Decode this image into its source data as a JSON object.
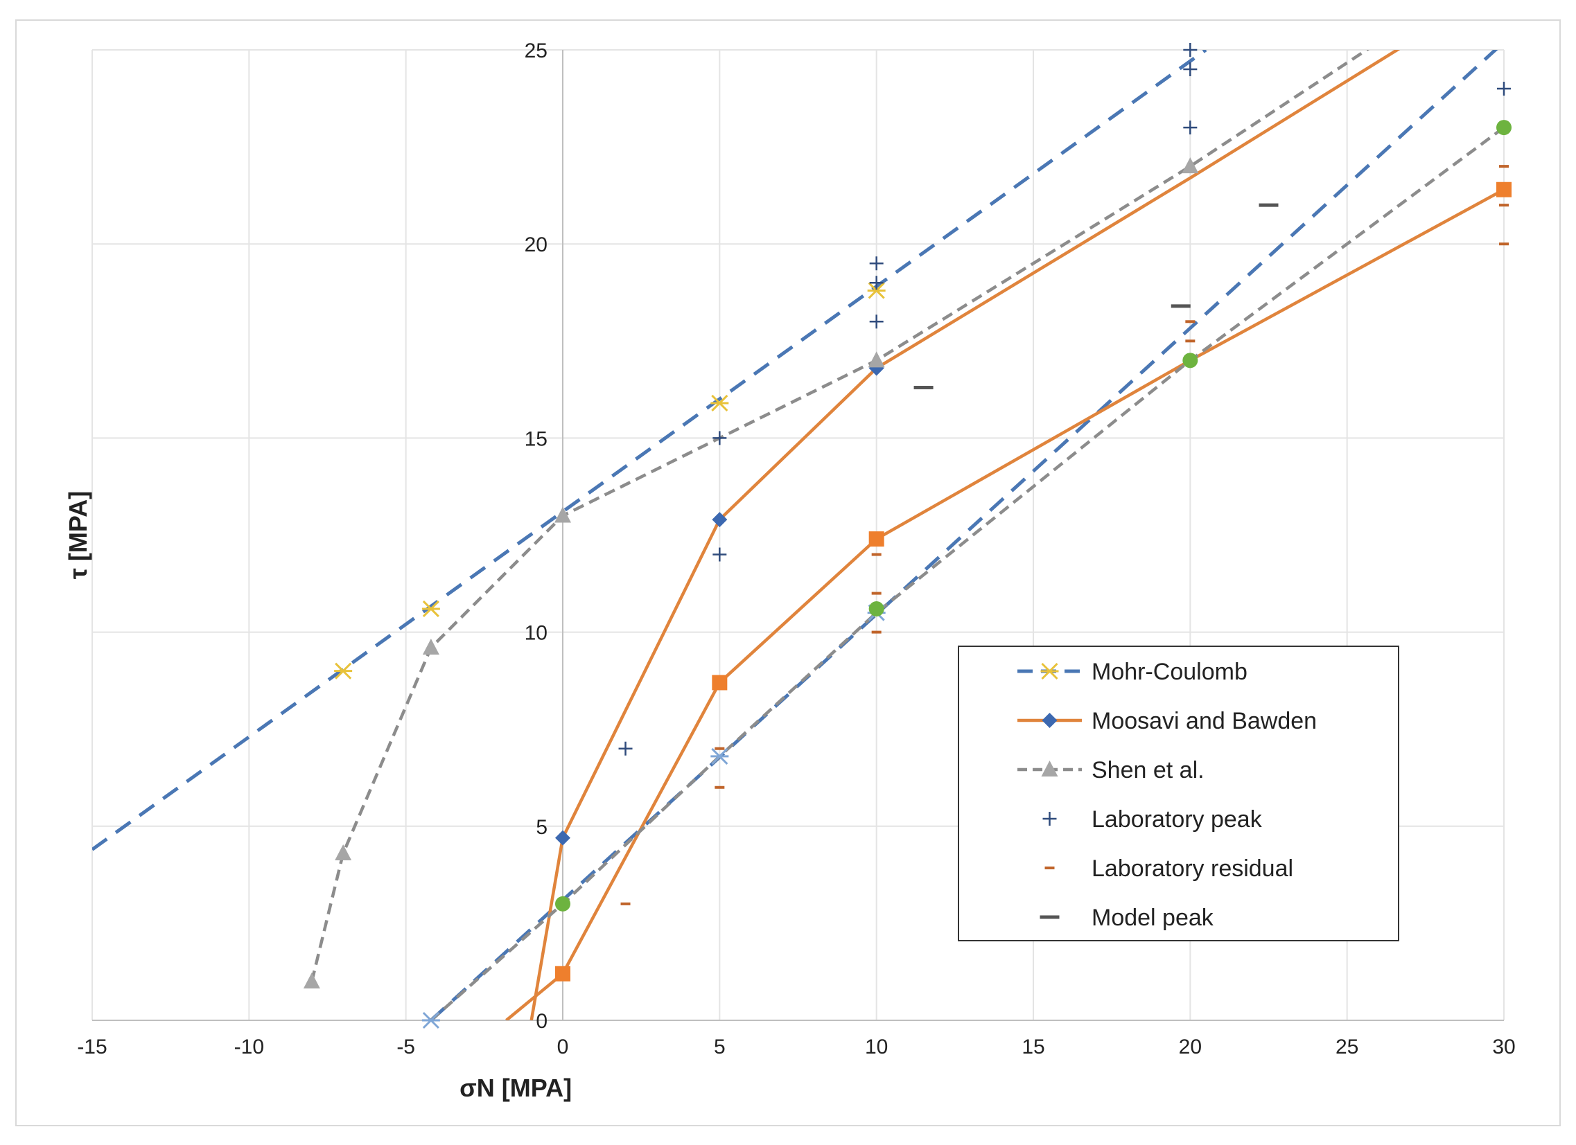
{
  "chart_data": {
    "type": "scatter",
    "title": "",
    "xlabel": "σN  [MPA]",
    "ylabel": "τ [MPA]",
    "xlim": [
      -15,
      30
    ],
    "ylim": [
      0,
      25
    ],
    "xticks": [
      -15,
      -10,
      -5,
      0,
      5,
      10,
      15,
      20,
      25,
      30
    ],
    "yticks": [
      0,
      5,
      10,
      15,
      20,
      25
    ],
    "grid": true,
    "legend_position": "bottom-right",
    "colors": {
      "mohr_line": "#4a77b4",
      "mohr_marker": "#e8c23a",
      "moosavi_line": "#e0843c",
      "moosavi_marker_blue": "#3c68b0",
      "moosavi_marker_orange": "#ee7f2d",
      "moosavi_marker_green": "#6db33f",
      "shen_line": "#8c8c8c",
      "shen_marker": "#a6a6a6",
      "lab_peak": "#2f4b7c",
      "lab_residual": "#c0642a",
      "model_peak": "#555555",
      "grid": "#e4e4e4"
    },
    "series": [
      {
        "name": "Mohr-Coulomb",
        "kind": "mohr",
        "lines": [
          {
            "points": [
              [
                -15,
                4.4
              ],
              [
                20.5,
                25
              ]
            ]
          },
          {
            "points": [
              [
                -4.2,
                0
              ],
              [
                30,
                25.2
              ]
            ]
          }
        ],
        "markers": [
          [
            -7,
            9
          ],
          [
            -4.2,
            10.6
          ],
          [
            5,
            15.9
          ],
          [
            10,
            18.8
          ]
        ],
        "markers2": [
          [
            -4.2,
            0
          ],
          [
            5,
            6.8
          ],
          [
            10,
            10.5
          ]
        ]
      },
      {
        "name": "Moosavi and Bawden",
        "kind": "moosavi",
        "lines": [
          {
            "points": [
              [
                -1,
                0
              ],
              [
                0,
                4.7
              ],
              [
                5,
                12.9
              ],
              [
                10,
                16.8
              ],
              [
                20,
                21.7
              ],
              [
                27,
                25.2
              ]
            ]
          },
          {
            "points": [
              [
                -1.8,
                0
              ],
              [
                0,
                1.2
              ],
              [
                5,
                8.7
              ],
              [
                10,
                12.4
              ],
              [
                20,
                17
              ],
              [
                30,
                21.4
              ]
            ]
          }
        ],
        "markers_blue": [
          [
            0,
            4.7
          ],
          [
            5,
            12.9
          ],
          [
            10,
            16.8
          ]
        ],
        "markers_orange": [
          [
            0,
            1.2
          ],
          [
            5,
            8.7
          ],
          [
            10,
            12.4
          ],
          [
            30,
            21.4
          ]
        ],
        "markers_green": [
          [
            0,
            3
          ],
          [
            10,
            10.6
          ],
          [
            20,
            17
          ],
          [
            30,
            23
          ]
        ]
      },
      {
        "name": "Shen et al.",
        "kind": "shen",
        "lines": [
          {
            "points": [
              [
                -8,
                1
              ],
              [
                -7,
                4.3
              ],
              [
                -4.2,
                9.6
              ],
              [
                0,
                13
              ],
              [
                10,
                17
              ],
              [
                20,
                22
              ],
              [
                26,
                25.2
              ]
            ]
          },
          {
            "points": [
              [
                -4.2,
                0
              ],
              [
                0,
                3
              ],
              [
                5,
                6.8
              ],
              [
                10,
                10.5
              ],
              [
                20,
                17
              ],
              [
                30,
                23
              ]
            ]
          }
        ],
        "markers": [
          [
            -8,
            1
          ],
          [
            -7,
            4.3
          ],
          [
            -4.2,
            9.6
          ],
          [
            0,
            13
          ],
          [
            10,
            17
          ],
          [
            20,
            22
          ]
        ]
      },
      {
        "name": "Laboratory peak",
        "kind": "plus",
        "points": [
          [
            2,
            7
          ],
          [
            5,
            12
          ],
          [
            5,
            15
          ],
          [
            10,
            18
          ],
          [
            10,
            19
          ],
          [
            10,
            19.5
          ],
          [
            20,
            23
          ],
          [
            20,
            24.5
          ],
          [
            20,
            25
          ],
          [
            30,
            24
          ]
        ]
      },
      {
        "name": "Laboratory residual",
        "kind": "residual",
        "points": [
          [
            2,
            3
          ],
          [
            5,
            6
          ],
          [
            5,
            7
          ],
          [
            10,
            10
          ],
          [
            10,
            11
          ],
          [
            10,
            12
          ],
          [
            20,
            17.5
          ],
          [
            20,
            18
          ],
          [
            30,
            20
          ],
          [
            30,
            21
          ],
          [
            30,
            22
          ]
        ]
      },
      {
        "name": "Model peak",
        "kind": "model",
        "points": [
          [
            11.5,
            16.3
          ],
          [
            19.7,
            18.4
          ],
          [
            22.5,
            21
          ]
        ]
      }
    ]
  }
}
